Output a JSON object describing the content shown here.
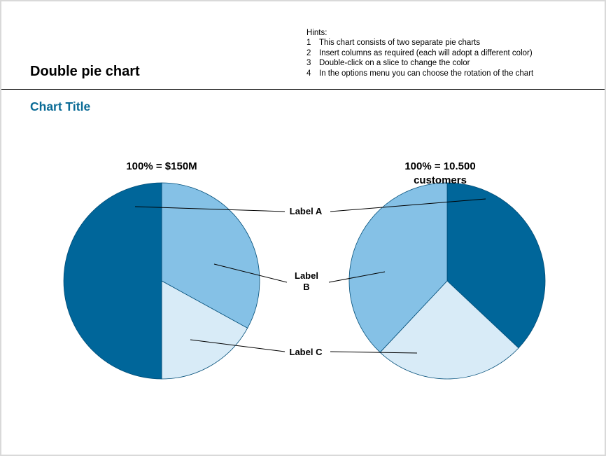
{
  "header": {
    "title": "Double pie chart",
    "hints_title": "Hints:",
    "hints": [
      {
        "num": "1",
        "text": "This chart consists of two separate pie charts"
      },
      {
        "num": "2",
        "text": "Insert columns as required (each will adopt a different color)"
      },
      {
        "num": "3",
        "text": "Double-click on a slice to change the color"
      },
      {
        "num": "4",
        "text": "In the options menu you can choose the rotation of the chart"
      }
    ]
  },
  "colors": {
    "title_accent": "#0a6b96",
    "label_a": "#00669a",
    "label_b": "#85c1e6",
    "label_c": "#d8ebf7",
    "slice_stroke": "#004d78"
  },
  "chart_data": {
    "type": "pie",
    "title": "Chart Title",
    "categories": [
      "Label A",
      "Label B",
      "Label C"
    ],
    "labels_text": {
      "a": "Label A",
      "b_line1": "Label",
      "b_line2": "B",
      "c": "Label C"
    },
    "pies": [
      {
        "caption": "100% = $150M",
        "caption_line2": "",
        "values": [
          50,
          33,
          17
        ]
      },
      {
        "caption": "100% = 10.500",
        "caption_line2": "customers",
        "values": [
          37,
          38,
          25
        ]
      }
    ]
  }
}
